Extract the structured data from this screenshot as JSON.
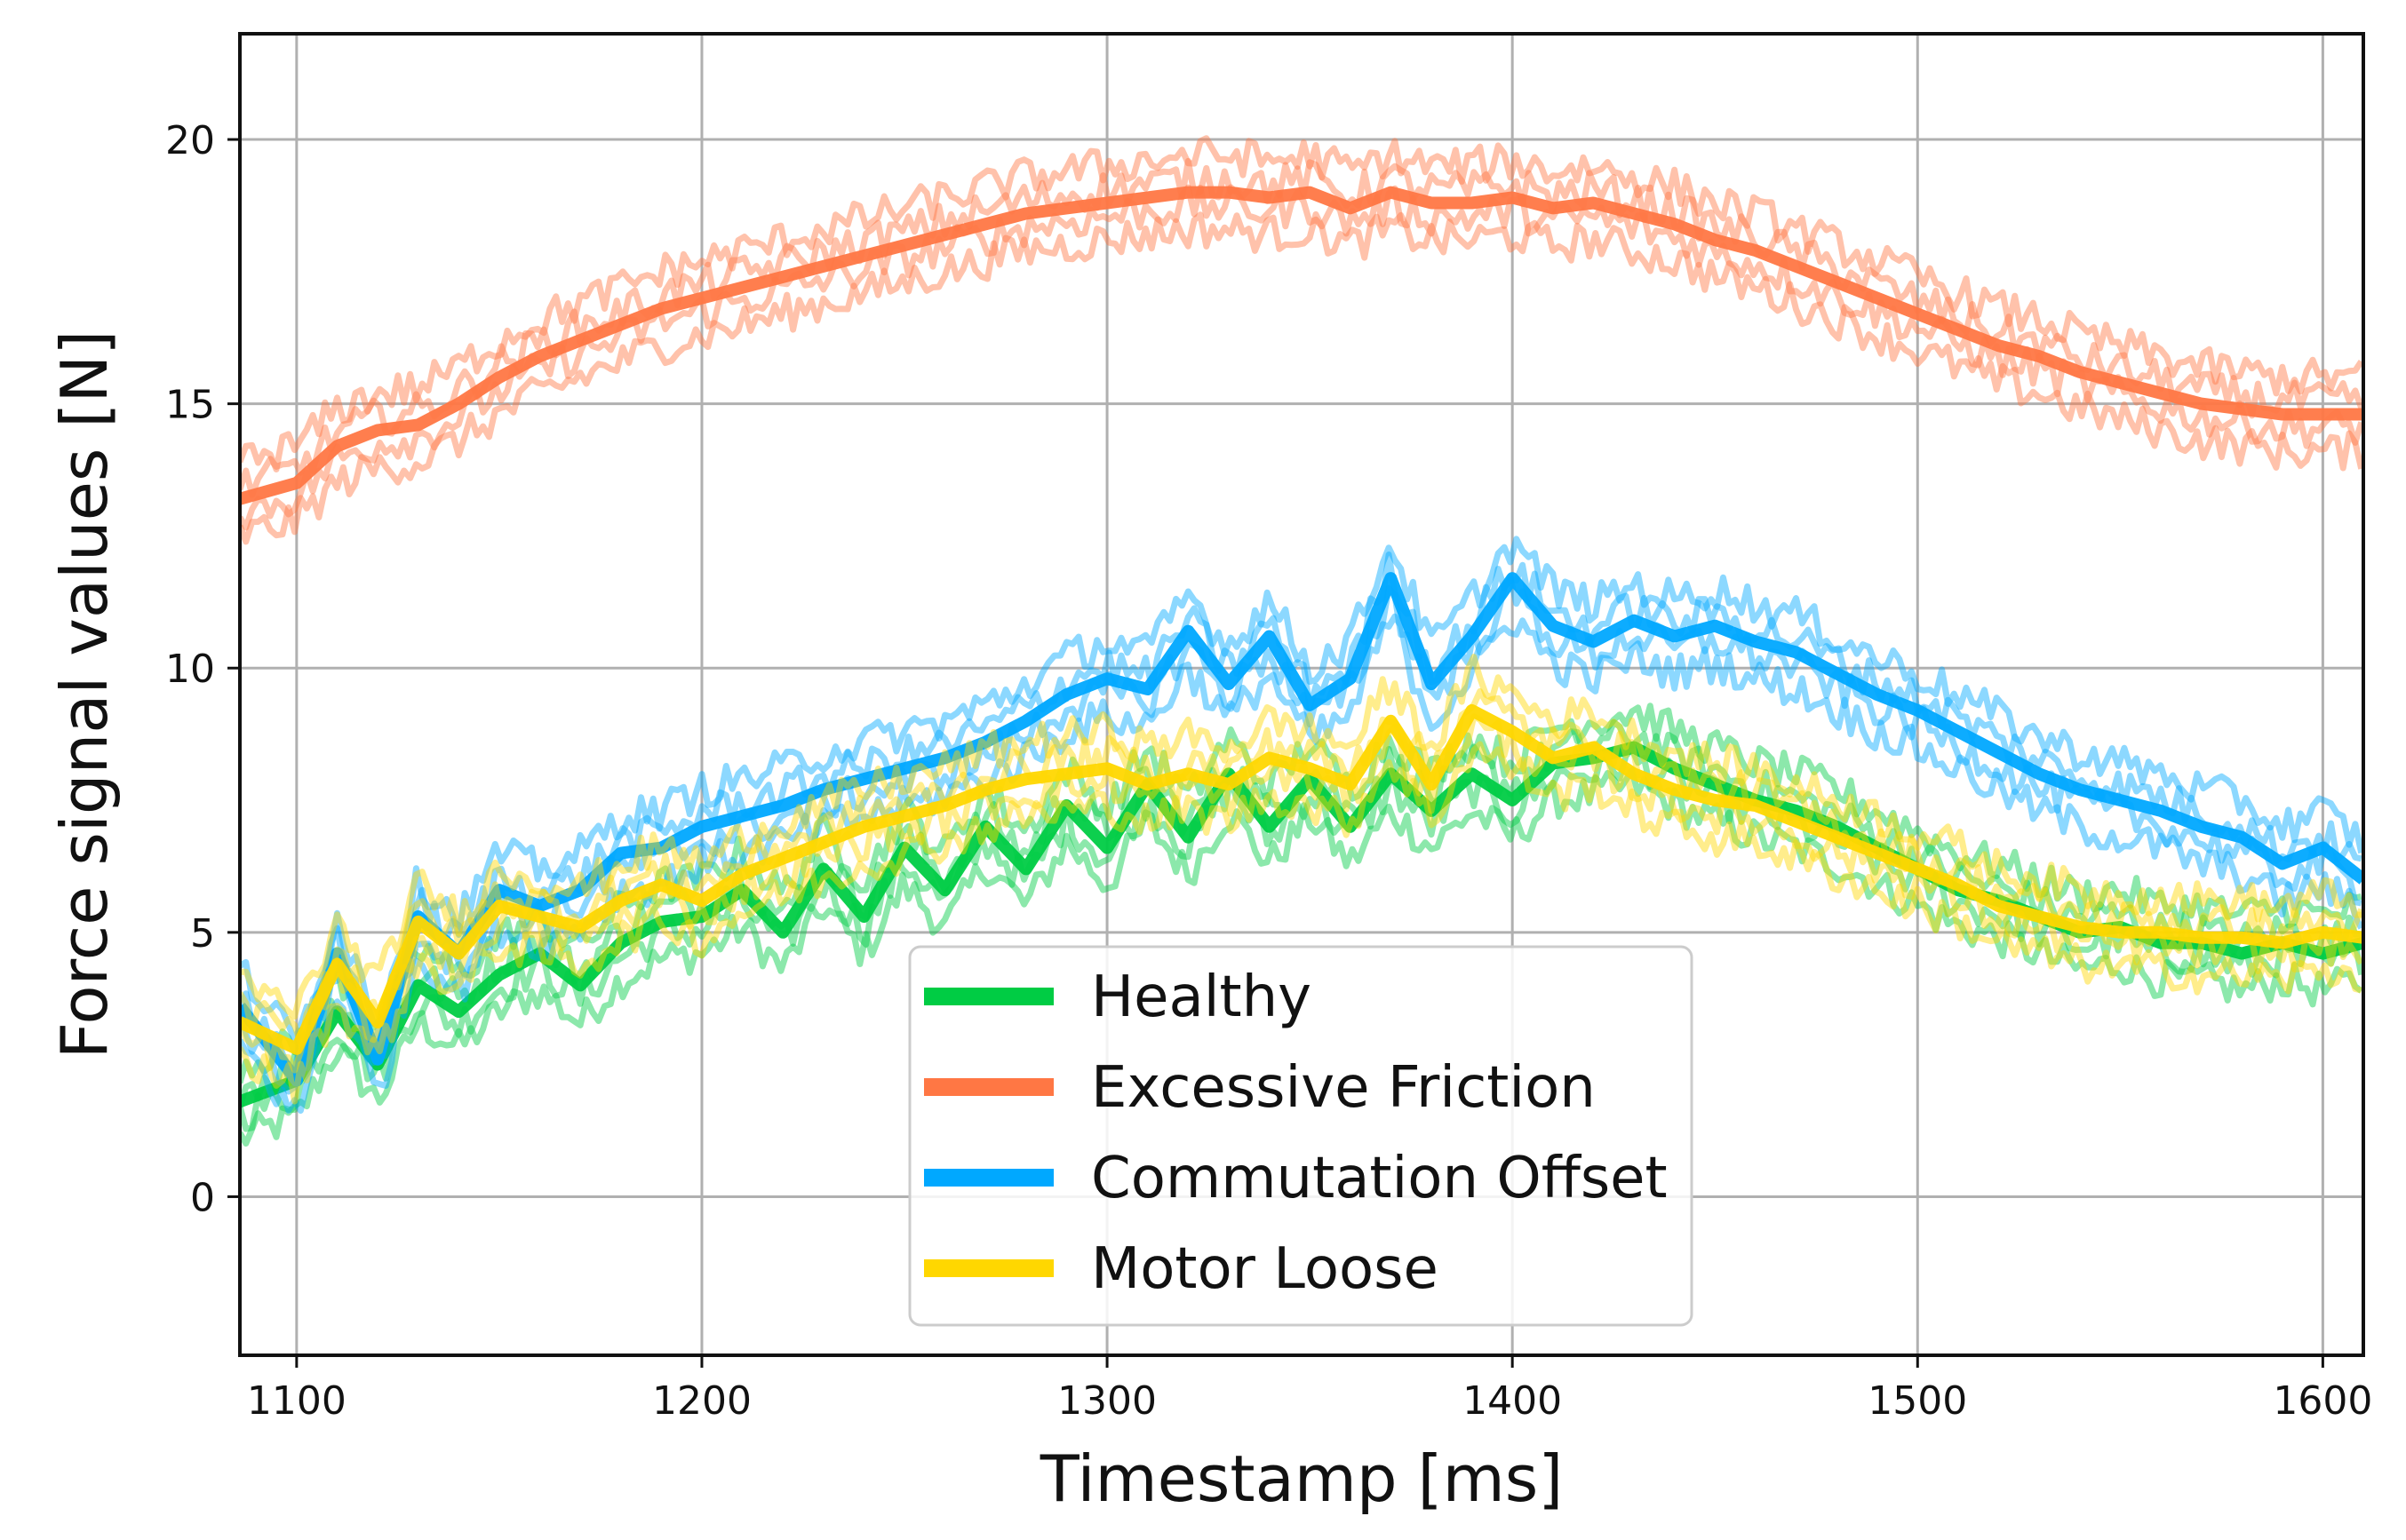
{
  "chart_data": {
    "type": "line",
    "title": "",
    "xlabel": "Timestamp [ms]",
    "ylabel": "Force signal values [N]",
    "xlim": [
      1086,
      1610
    ],
    "ylim": [
      -3,
      22
    ],
    "xticks": [
      1100,
      1200,
      1300,
      1400,
      1500,
      1600
    ],
    "yticks": [
      0,
      5,
      10,
      15,
      20
    ],
    "xtick_labels": [
      "1100",
      "1200",
      "1300",
      "1400",
      "1500",
      "1600"
    ],
    "ytick_labels": [
      "0",
      "5",
      "10",
      "15",
      "20"
    ],
    "grid": true,
    "legend_position": "lower center",
    "series": [
      {
        "name": "Healthy",
        "color": "#00cc44",
        "x": [
          1086,
          1100,
          1110,
          1120,
          1130,
          1140,
          1150,
          1160,
          1170,
          1180,
          1190,
          1200,
          1210,
          1220,
          1230,
          1240,
          1250,
          1260,
          1270,
          1280,
          1290,
          1300,
          1310,
          1320,
          1330,
          1340,
          1350,
          1360,
          1370,
          1380,
          1390,
          1400,
          1410,
          1420,
          1430,
          1440,
          1450,
          1460,
          1470,
          1480,
          1490,
          1500,
          1510,
          1520,
          1530,
          1540,
          1550,
          1560,
          1570,
          1580,
          1590,
          1600,
          1610
        ],
        "values": [
          1.8,
          2.2,
          3.5,
          2.5,
          4.0,
          3.5,
          4.2,
          4.6,
          4.0,
          4.8,
          5.2,
          5.3,
          5.8,
          5.0,
          6.2,
          5.3,
          6.6,
          5.8,
          7.0,
          6.2,
          7.4,
          6.6,
          7.8,
          6.8,
          8.0,
          7.0,
          7.9,
          7.0,
          8.0,
          7.3,
          8.0,
          7.5,
          8.2,
          8.3,
          8.5,
          8.1,
          7.8,
          7.5,
          7.3,
          7.0,
          6.6,
          6.2,
          5.8,
          5.6,
          5.3,
          5.0,
          5.1,
          4.8,
          4.8,
          4.6,
          4.8,
          4.6,
          4.8
        ]
      },
      {
        "name": "Excessive Friction",
        "color": "#ff7744",
        "x": [
          1086,
          1100,
          1110,
          1120,
          1130,
          1140,
          1150,
          1160,
          1170,
          1180,
          1190,
          1200,
          1210,
          1220,
          1230,
          1240,
          1250,
          1260,
          1270,
          1280,
          1290,
          1300,
          1310,
          1320,
          1330,
          1340,
          1350,
          1360,
          1370,
          1380,
          1390,
          1400,
          1410,
          1420,
          1430,
          1440,
          1450,
          1460,
          1470,
          1480,
          1490,
          1500,
          1510,
          1520,
          1530,
          1540,
          1550,
          1560,
          1570,
          1580,
          1590,
          1600,
          1610
        ],
        "values": [
          13.2,
          13.5,
          14.2,
          14.5,
          14.6,
          15.0,
          15.5,
          15.9,
          16.2,
          16.5,
          16.8,
          17.0,
          17.2,
          17.4,
          17.6,
          17.8,
          18.0,
          18.2,
          18.4,
          18.6,
          18.7,
          18.8,
          18.9,
          19.0,
          19.0,
          18.9,
          19.0,
          18.7,
          19.0,
          18.8,
          18.8,
          18.9,
          18.7,
          18.8,
          18.6,
          18.4,
          18.1,
          17.9,
          17.6,
          17.3,
          17.0,
          16.7,
          16.4,
          16.1,
          15.9,
          15.6,
          15.4,
          15.2,
          15.0,
          14.9,
          14.8,
          14.8,
          14.8
        ]
      },
      {
        "name": "Commutation Offset",
        "color": "#00a8ff",
        "x": [
          1086,
          1100,
          1110,
          1120,
          1130,
          1140,
          1150,
          1160,
          1170,
          1180,
          1190,
          1200,
          1210,
          1220,
          1230,
          1240,
          1250,
          1260,
          1270,
          1280,
          1290,
          1300,
          1310,
          1320,
          1330,
          1340,
          1350,
          1360,
          1370,
          1380,
          1390,
          1400,
          1410,
          1420,
          1430,
          1440,
          1450,
          1460,
          1470,
          1480,
          1490,
          1500,
          1510,
          1520,
          1530,
          1540,
          1550,
          1560,
          1570,
          1580,
          1590,
          1600,
          1610
        ],
        "values": [
          3.6,
          2.2,
          4.6,
          2.6,
          5.3,
          4.6,
          5.8,
          5.5,
          5.8,
          6.5,
          6.6,
          7.0,
          7.2,
          7.4,
          7.7,
          7.9,
          8.1,
          8.3,
          8.6,
          9.0,
          9.5,
          9.8,
          9.6,
          10.7,
          9.7,
          10.6,
          9.3,
          9.8,
          11.7,
          9.7,
          10.6,
          11.7,
          10.8,
          10.5,
          10.9,
          10.6,
          10.8,
          10.5,
          10.3,
          9.9,
          9.5,
          9.2,
          8.8,
          8.4,
          8.0,
          7.7,
          7.5,
          7.3,
          7.0,
          6.8,
          6.3,
          6.6,
          6.0
        ]
      },
      {
        "name": "Motor Loose",
        "color": "#ffd700",
        "x": [
          1086,
          1100,
          1110,
          1120,
          1130,
          1140,
          1150,
          1160,
          1170,
          1180,
          1190,
          1200,
          1210,
          1220,
          1230,
          1240,
          1250,
          1260,
          1270,
          1280,
          1290,
          1300,
          1310,
          1320,
          1330,
          1340,
          1350,
          1360,
          1370,
          1380,
          1390,
          1400,
          1410,
          1420,
          1430,
          1440,
          1450,
          1460,
          1470,
          1480,
          1490,
          1500,
          1510,
          1520,
          1530,
          1540,
          1550,
          1560,
          1570,
          1580,
          1590,
          1600,
          1610
        ],
        "values": [
          3.3,
          2.8,
          4.4,
          3.3,
          5.2,
          4.6,
          5.5,
          5.3,
          5.1,
          5.6,
          5.9,
          5.6,
          6.1,
          6.4,
          6.7,
          7.0,
          7.2,
          7.4,
          7.7,
          7.9,
          8.0,
          8.1,
          7.8,
          8.0,
          7.8,
          8.3,
          8.1,
          7.8,
          9.0,
          7.8,
          9.2,
          8.8,
          8.3,
          8.5,
          8.0,
          7.7,
          7.5,
          7.4,
          7.1,
          6.8,
          6.5,
          6.2,
          5.9,
          5.5,
          5.3,
          5.1,
          5.0,
          5.0,
          4.9,
          4.9,
          4.8,
          5.0,
          4.9
        ]
      }
    ]
  }
}
